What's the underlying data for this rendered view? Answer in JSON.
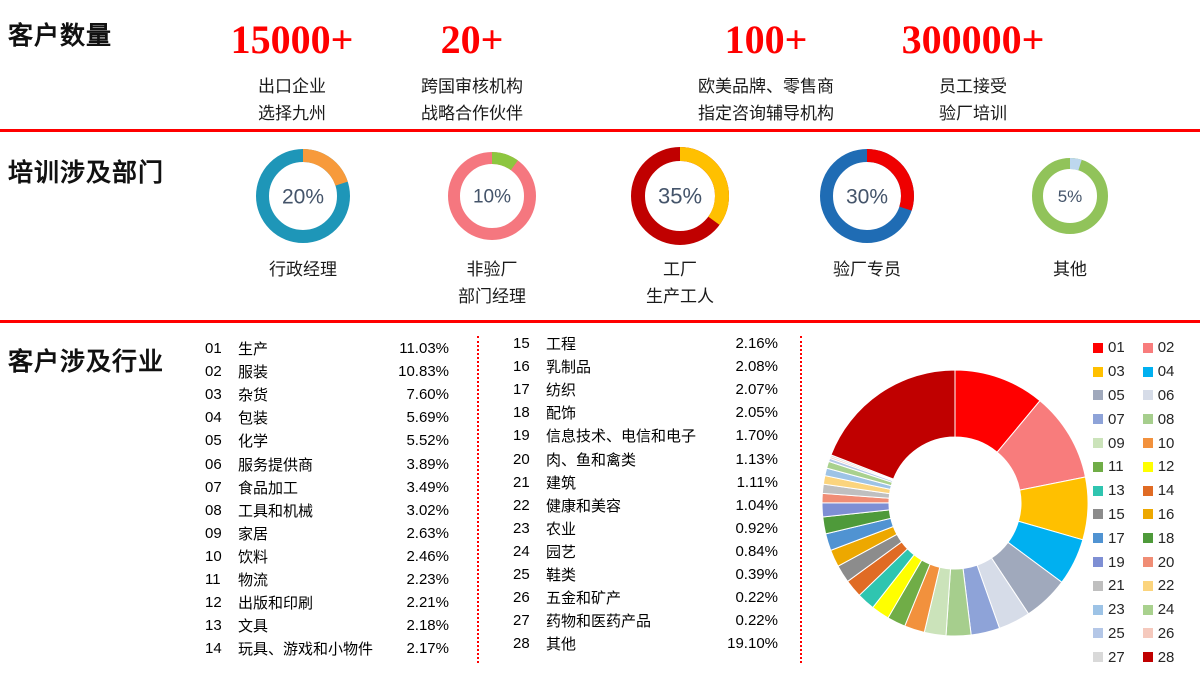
{
  "colors": {
    "accent_red": "#FF0000",
    "percent_text": "#44546A",
    "divider_dotted": "#FF0000",
    "text": "#1A1A1A"
  },
  "sections": {
    "customers": {
      "label": "客户数量"
    },
    "departments": {
      "label": "培训涉及部门"
    },
    "industries_title": {
      "label": "客户涉及行业"
    }
  },
  "customer_stats": [
    {
      "number": "15000+",
      "lines": [
        "出口企业",
        "选择九州"
      ]
    },
    {
      "number": "20+",
      "lines": [
        "跨国审核机构",
        "战略合作伙伴"
      ]
    },
    {
      "number": "100+",
      "lines": [
        "欧美品牌、零售商",
        "指定咨询辅导机构"
      ]
    },
    {
      "number": "300000+",
      "lines": [
        "员工接受",
        "验厂培训"
      ]
    }
  ],
  "industries": {
    "label": "客户涉及行业",
    "items": [
      {
        "num": "01",
        "name": "生产",
        "pct": "11.03%"
      },
      {
        "num": "02",
        "name": "服装",
        "pct": "10.83%"
      },
      {
        "num": "03",
        "name": "杂货",
        "pct": "7.60%"
      },
      {
        "num": "04",
        "name": "包装",
        "pct": "5.69%"
      },
      {
        "num": "05",
        "name": "化学",
        "pct": "5.52%"
      },
      {
        "num": "06",
        "name": "服务提供商",
        "pct": "3.89%"
      },
      {
        "num": "07",
        "name": "食品加工",
        "pct": "3.49%"
      },
      {
        "num": "08",
        "name": "工具和机械",
        "pct": "3.02%"
      },
      {
        "num": "09",
        "name": "家居",
        "pct": "2.63%"
      },
      {
        "num": "10",
        "name": "饮料",
        "pct": "2.46%"
      },
      {
        "num": "11",
        "name": "物流",
        "pct": "2.23%"
      },
      {
        "num": "12",
        "name": "出版和印刷",
        "pct": "2.21%"
      },
      {
        "num": "13",
        "name": "文具",
        "pct": "2.18%"
      },
      {
        "num": "14",
        "name": "玩具、游戏和小物件",
        "pct": "2.17%"
      },
      {
        "num": "15",
        "name": "工程",
        "pct": "2.16%"
      },
      {
        "num": "16",
        "name": "乳制品",
        "pct": "2.08%"
      },
      {
        "num": "17",
        "name": "纺织",
        "pct": "2.07%"
      },
      {
        "num": "18",
        "name": "配饰",
        "pct": "2.05%"
      },
      {
        "num": "19",
        "name": "信息技术、电信和电子",
        "pct": "1.70%"
      },
      {
        "num": "20",
        "name": "肉、鱼和禽类",
        "pct": "1.13%"
      },
      {
        "num": "21",
        "name": "建筑",
        "pct": "1.11%"
      },
      {
        "num": "22",
        "name": "健康和美容",
        "pct": "1.04%"
      },
      {
        "num": "23",
        "name": "农业",
        "pct": "0.92%"
      },
      {
        "num": "24",
        "name": "园艺",
        "pct": "0.84%"
      },
      {
        "num": "25",
        "name": "鞋类",
        "pct": "0.39%"
      },
      {
        "num": "26",
        "name": "五金和矿产",
        "pct": "0.22%"
      },
      {
        "num": "27",
        "name": "药物和医药产品",
        "pct": "0.22%"
      },
      {
        "num": "28",
        "name": "其他",
        "pct": "19.10%"
      }
    ]
  },
  "chart_data": [
    {
      "type": "pie",
      "variant": "donut-indicator-set",
      "title": "培训涉及部门",
      "items": [
        {
          "percent": 20,
          "label_lines": [
            "行政经理"
          ],
          "ring_color": "#1E96B8",
          "segment_color": "#F79A3B"
        },
        {
          "percent": 10,
          "label_lines": [
            "非验厂",
            "部门经理"
          ],
          "ring_color": "#F5777F",
          "segment_color": "#8DC63F"
        },
        {
          "percent": 35,
          "label_lines": [
            "工厂",
            "生产工人"
          ],
          "ring_color": "#C00000",
          "segment_color": "#FFC000"
        },
        {
          "percent": 30,
          "label_lines": [
            "验厂专员"
          ],
          "ring_color": "#1F6CB4",
          "segment_color": "#EF0000"
        },
        {
          "percent": 5,
          "label_lines": [
            "其他"
          ],
          "ring_color": "#91C35A",
          "segment_color": "#BDD7EE"
        }
      ]
    },
    {
      "type": "pie",
      "variant": "donut",
      "title": "客户涉及行业",
      "legend_position": "right",
      "legend_labels": [
        "01",
        "02",
        "03",
        "04",
        "05",
        "06",
        "07",
        "08",
        "09",
        "10",
        "11",
        "12",
        "13",
        "14",
        "15",
        "16",
        "17",
        "18",
        "19",
        "20",
        "21",
        "22",
        "23",
        "24",
        "25",
        "26",
        "27",
        "28"
      ],
      "categories": [
        "生产",
        "服装",
        "杂货",
        "包装",
        "化学",
        "服务提供商",
        "食品加工",
        "工具和机械",
        "家居",
        "饮料",
        "物流",
        "出版和印刷",
        "文具",
        "玩具、游戏和小物件",
        "工程",
        "乳制品",
        "纺织",
        "配饰",
        "信息技术、电信和电子",
        "肉、鱼和禽类",
        "建筑",
        "健康和美容",
        "农业",
        "园艺",
        "鞋类",
        "五金和矿产",
        "药物和医药产品",
        "其他"
      ],
      "values": [
        11.03,
        10.83,
        7.6,
        5.69,
        5.52,
        3.89,
        3.49,
        3.02,
        2.63,
        2.46,
        2.23,
        2.21,
        2.18,
        2.17,
        2.16,
        2.08,
        2.07,
        2.05,
        1.7,
        1.13,
        1.11,
        1.04,
        0.92,
        0.84,
        0.39,
        0.22,
        0.22,
        19.1
      ],
      "colors": [
        "#FF0000",
        "#F87C7C",
        "#FFC000",
        "#00B0F0",
        "#A0A9BC",
        "#D6DCE8",
        "#8EA3D8",
        "#A6CE8D",
        "#CBE3BA",
        "#F2913D",
        "#70AD47",
        "#FFFF00",
        "#2FC5B0",
        "#E06B24",
        "#8C8C8C",
        "#EDA800",
        "#5093D2",
        "#4E9A3A",
        "#7E8FD4",
        "#F08D75",
        "#BFBFBF",
        "#FBD47D",
        "#9DC3E6",
        "#A9D18E",
        "#B4C7E7",
        "#F5C9BD",
        "#D9D9D9",
        "#C00000"
      ]
    }
  ]
}
